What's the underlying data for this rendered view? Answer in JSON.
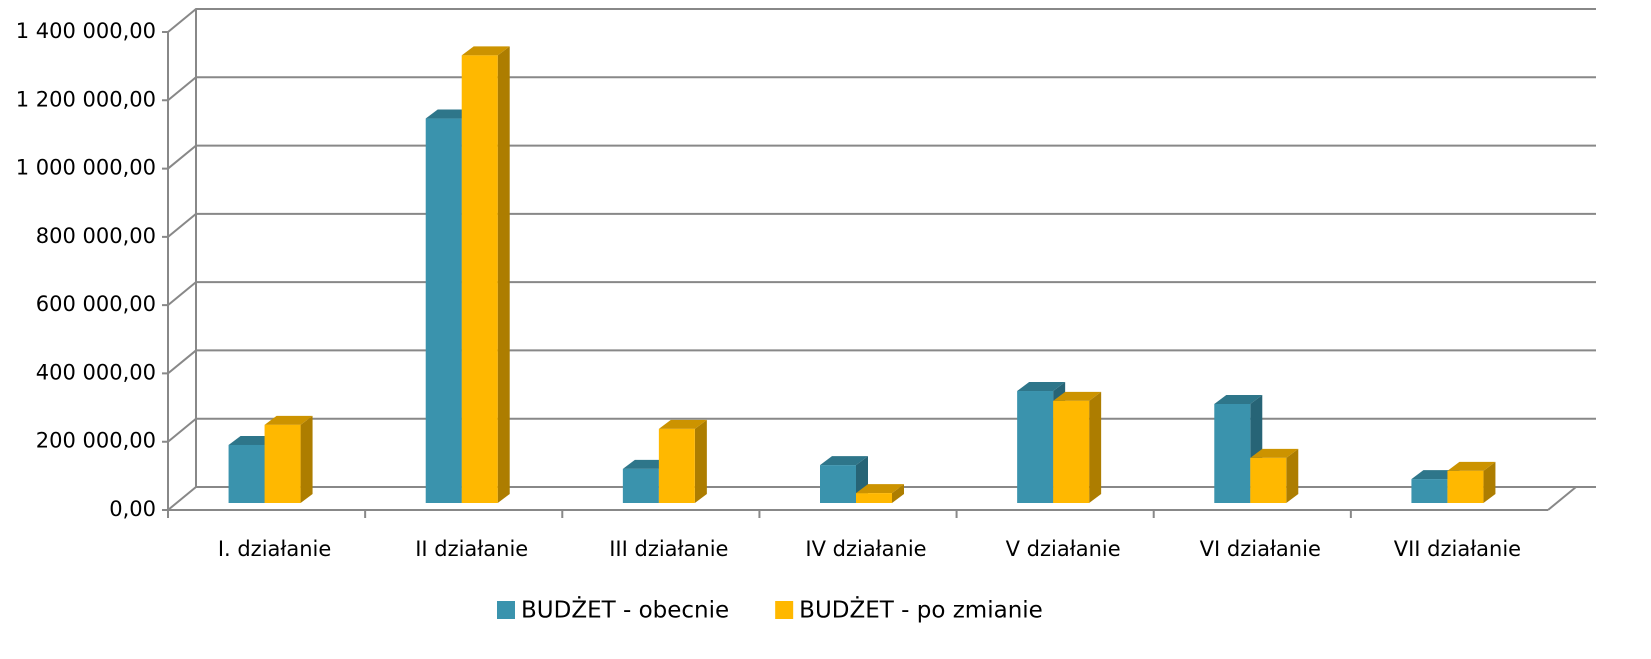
{
  "chart_data": {
    "type": "bar3d",
    "categories": [
      "I. działanie",
      "II działanie",
      "III działanie",
      "IV działanie",
      "V działanie",
      "VI działanie",
      "VII działanie"
    ],
    "series": [
      {
        "name": "BUDŻET - obecnie",
        "color": "#3a93ad",
        "values": [
          170000,
          1126000,
          100000,
          111000,
          328000,
          290000,
          70000
        ]
      },
      {
        "name": "BUDŻET - po zmianie",
        "color": "#ffb800",
        "values": [
          229000,
          1311000,
          217000,
          29000,
          299000,
          132000,
          94000
        ]
      }
    ],
    "ylim": [
      0,
      1400000
    ],
    "yticks": [
      {
        "value": 0,
        "label": "0,00"
      },
      {
        "value": 200000,
        "label": "200 000,00"
      },
      {
        "value": 400000,
        "label": "400 000,00"
      },
      {
        "value": 600000,
        "label": "600 000,00"
      },
      {
        "value": 800000,
        "label": "800 000,00"
      },
      {
        "value": 1000000,
        "label": "1 000 000,00"
      },
      {
        "value": 1200000,
        "label": "1 200 000,00"
      },
      {
        "value": 1400000,
        "label": "1 400 000,00"
      }
    ],
    "grid": true,
    "legend": "bottom"
  }
}
